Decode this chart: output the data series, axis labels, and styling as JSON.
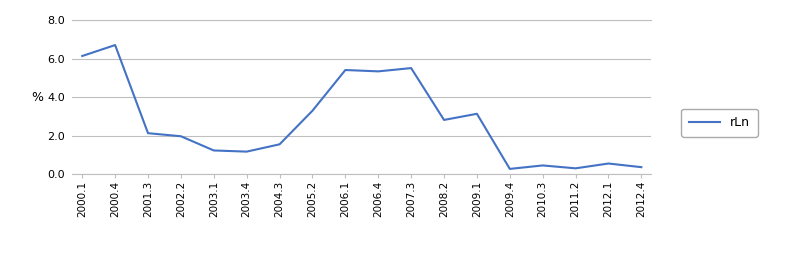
{
  "labels": [
    "2000.1",
    "2000.4",
    "2001.3",
    "2002.2",
    "2003.1",
    "2003.4",
    "2004.3",
    "2005.2",
    "2006.1",
    "2006.4",
    "2007.3",
    "2008.2",
    "2009.1",
    "2009.4",
    "2010.3",
    "2011.2",
    "2012.1",
    "2012.4"
  ],
  "values": [
    6.15,
    6.72,
    2.13,
    1.97,
    1.23,
    1.17,
    1.55,
    3.3,
    5.42,
    5.35,
    5.52,
    2.82,
    3.14,
    0.27,
    0.45,
    0.3,
    0.55,
    0.36
  ],
  "line_color": "#4472c4",
  "line_width": 1.5,
  "ylabel": "%",
  "ylim": [
    0.0,
    8.0
  ],
  "yticks": [
    0.0,
    2.0,
    4.0,
    6.0,
    8.0
  ],
  "legend_label": "rLn",
  "background_color": "#ffffff",
  "plot_bg_color": "#ffffff",
  "grid_color": "#bfbfbf",
  "border_color": "#bfbfbf"
}
